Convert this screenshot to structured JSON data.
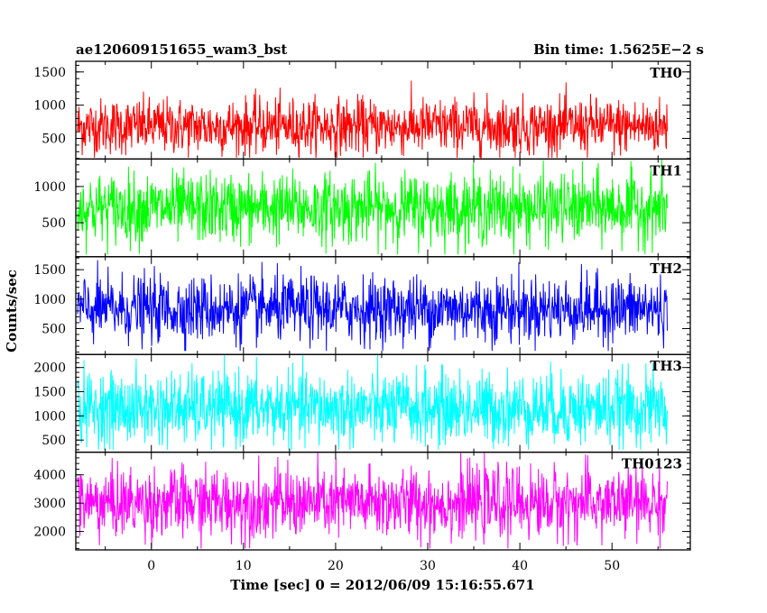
{
  "chart_data": {
    "type": "line",
    "title_left": "ae120609151655_wam3_bst",
    "title_right": "Bin time: 1.5625E−2 s",
    "xlabel": "Time [sec] 0 = 2012/06/09 15:16:55.671",
    "ylabel": "Counts/sec",
    "xlim": [
      -8.2,
      58.5
    ],
    "x_range_data": [
      -8.0,
      56.0
    ],
    "bin_time": 0.015625,
    "x_ticks": [
      0,
      10,
      20,
      30,
      40,
      50
    ],
    "panels": [
      {
        "name": "TH0",
        "color": "#ff0000",
        "ylim": [
          190,
          1660
        ],
        "y_ticks": [
          500,
          1000,
          1500
        ],
        "mean": 680,
        "sigma": 210,
        "min": 210,
        "max": 1660
      },
      {
        "name": "TH1",
        "color": "#00ff00",
        "ylim": [
          30,
          1380
        ],
        "y_ticks": [
          500,
          1000
        ],
        "mean": 700,
        "sigma": 240,
        "min": 60,
        "max": 1380
      },
      {
        "name": "TH2",
        "color": "#0000ff",
        "ylim": [
          60,
          1720
        ],
        "y_ticks": [
          500,
          1000,
          1500
        ],
        "mean": 830,
        "sigma": 280,
        "min": 120,
        "max": 1720
      },
      {
        "name": "TH3",
        "color": "#00ffff",
        "ylim": [
          250,
          2270
        ],
        "y_ticks": [
          500,
          1000,
          1500,
          2000
        ],
        "mean": 1150,
        "sigma": 380,
        "min": 300,
        "max": 2270
      },
      {
        "name": "TH0123",
        "color": "#ff00ff",
        "ylim": [
          1350,
          4800
        ],
        "y_ticks": [
          2000,
          3000,
          4000
        ],
        "mean": 3000,
        "sigma": 620,
        "min": 1400,
        "max": 4800
      }
    ]
  }
}
